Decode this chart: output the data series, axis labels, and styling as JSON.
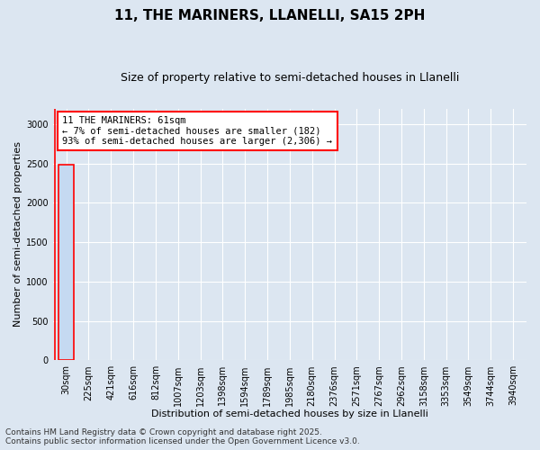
{
  "title": "11, THE MARINERS, LLANELLI, SA15 2PH",
  "subtitle": "Size of property relative to semi-detached houses in Llanelli",
  "xlabel": "Distribution of semi-detached houses by size in Llanelli",
  "ylabel": "Number of semi-detached properties",
  "categories": [
    "30sqm",
    "225sqm",
    "421sqm",
    "616sqm",
    "812sqm",
    "1007sqm",
    "1203sqm",
    "1398sqm",
    "1594sqm",
    "1789sqm",
    "1985sqm",
    "2180sqm",
    "2376sqm",
    "2571sqm",
    "2767sqm",
    "2962sqm",
    "3158sqm",
    "3353sqm",
    "3549sqm",
    "3744sqm",
    "3940sqm"
  ],
  "values": [
    2488,
    0,
    0,
    0,
    0,
    0,
    0,
    0,
    0,
    0,
    0,
    0,
    0,
    0,
    0,
    0,
    0,
    0,
    0,
    0,
    0
  ],
  "bar_color": "#c5d9f1",
  "bar_edge_color": "#4472c4",
  "highlight_bar_index": 0,
  "highlight_edge_color": "#ff0000",
  "annotation_text": "11 THE MARINERS: 61sqm\n← 7% of semi-detached houses are smaller (182)\n93% of semi-detached houses are larger (2,306) →",
  "annotation_box_edge": "#ff0000",
  "annotation_box_face": "#ffffff",
  "ylim": [
    0,
    3200
  ],
  "yticks": [
    0,
    500,
    1000,
    1500,
    2000,
    2500,
    3000
  ],
  "bg_color": "#dce6f1",
  "plot_bg_color": "#dce6f1",
  "footer": "Contains HM Land Registry data © Crown copyright and database right 2025.\nContains public sector information licensed under the Open Government Licence v3.0.",
  "title_fontsize": 11,
  "subtitle_fontsize": 9,
  "label_fontsize": 8,
  "tick_fontsize": 7,
  "annotation_fontsize": 7.5,
  "footer_fontsize": 6.5
}
